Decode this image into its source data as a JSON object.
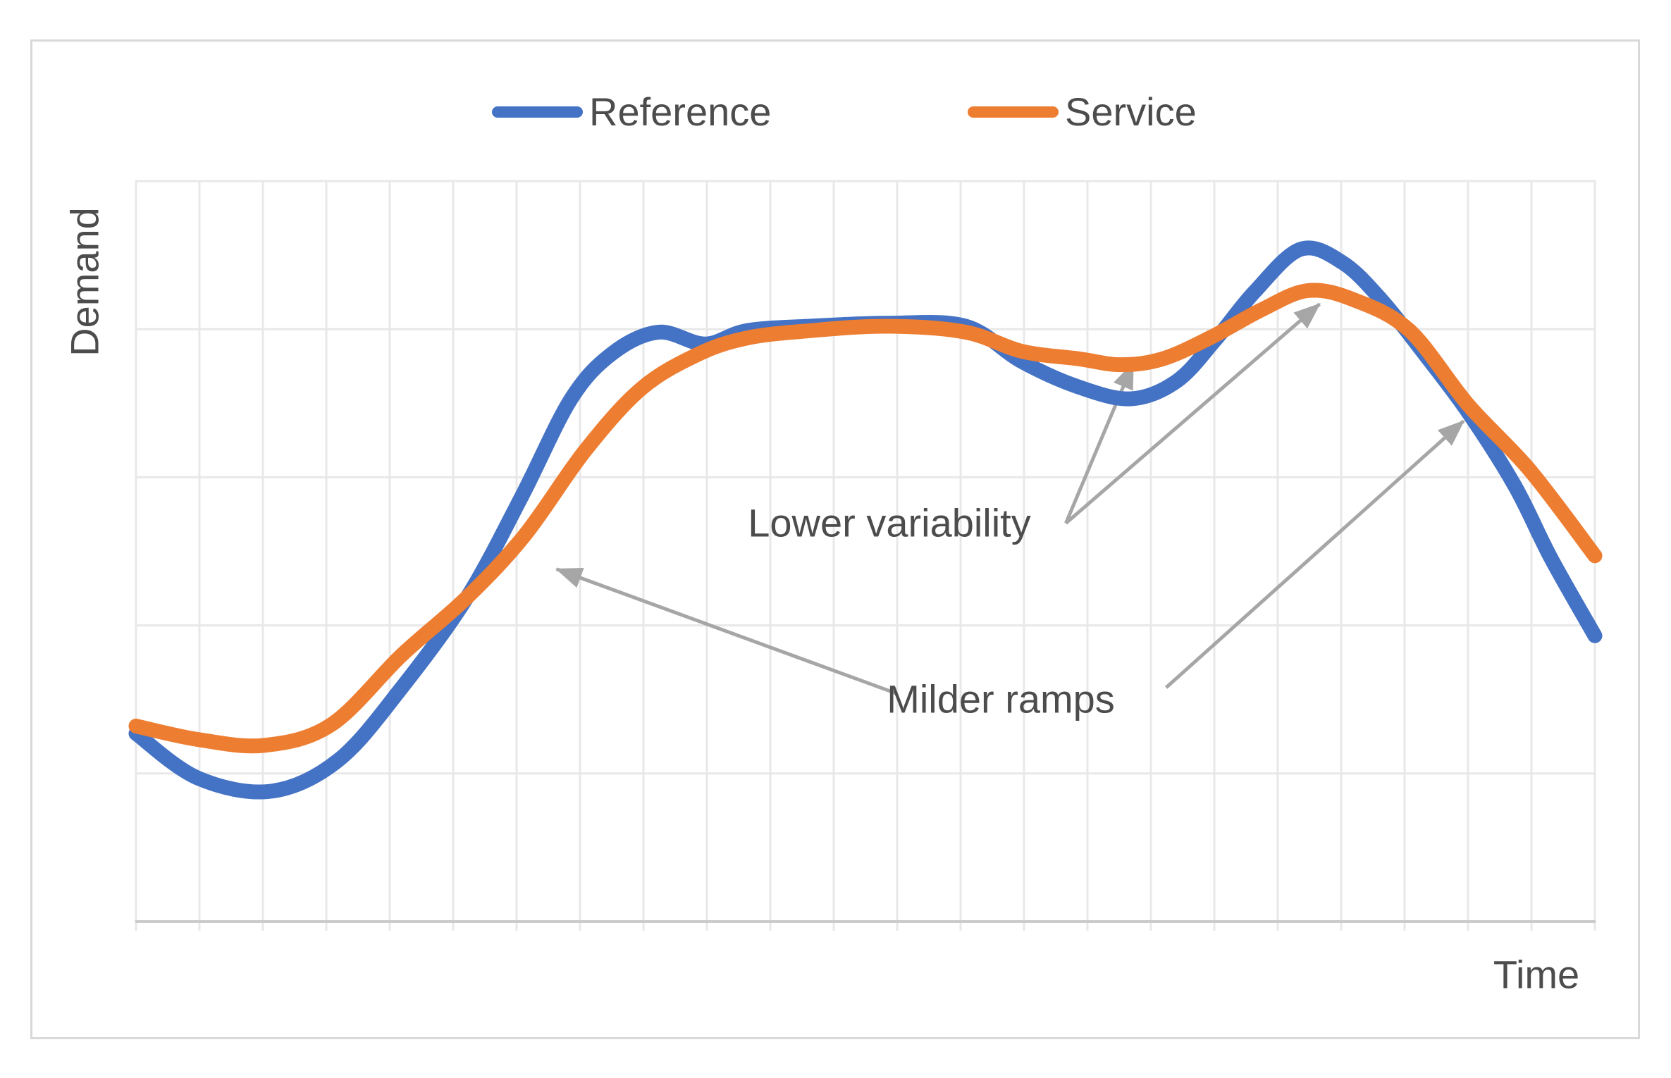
{
  "figure": {
    "legend": [
      {
        "label": "Reference",
        "color": "#4472C4",
        "swatch": "blue-line-swatch"
      },
      {
        "label": "Service",
        "color": "#ED7D31",
        "swatch": "orange-line-swatch"
      }
    ],
    "frame_color": "#d9d9d9",
    "text_color": "#4c4c4c",
    "arrow_color": "#a6a6a6",
    "gridline_color": "#e8e8e8",
    "axis_line_color": "#cbcbcb"
  },
  "chart_data": {
    "type": "line",
    "title": "",
    "xlabel": "Time",
    "ylabel": "Demand",
    "x_range": [
      0,
      23
    ],
    "y_range": [
      0,
      5
    ],
    "x_gridline_count": 24,
    "y_gridline_count": 6,
    "grid": true,
    "legend_position": "top",
    "axis_tick_labels": "none",
    "series": [
      {
        "name": "Reference",
        "color": "#4472C4",
        "points": [
          [
            0.0,
            1.27
          ],
          [
            0.97,
            0.97
          ],
          [
            2.13,
            0.88
          ],
          [
            3.19,
            1.09
          ],
          [
            4.19,
            1.58
          ],
          [
            5.22,
            2.19
          ],
          [
            6.08,
            2.87
          ],
          [
            6.86,
            3.53
          ],
          [
            7.52,
            3.84
          ],
          [
            8.24,
            3.98
          ],
          [
            8.97,
            3.9
          ],
          [
            9.63,
            3.99
          ],
          [
            10.63,
            4.02
          ],
          [
            11.86,
            4.04
          ],
          [
            13.08,
            4.02
          ],
          [
            13.97,
            3.78
          ],
          [
            14.86,
            3.61
          ],
          [
            15.69,
            3.53
          ],
          [
            16.41,
            3.65
          ],
          [
            17.02,
            3.93
          ],
          [
            17.63,
            4.25
          ],
          [
            18.36,
            4.54
          ],
          [
            19.02,
            4.45
          ],
          [
            19.63,
            4.2
          ],
          [
            20.3,
            3.84
          ],
          [
            21.0,
            3.44
          ],
          [
            21.74,
            2.94
          ],
          [
            22.3,
            2.46
          ],
          [
            23.0,
            1.93
          ]
        ]
      },
      {
        "name": "Service",
        "color": "#ED7D31",
        "points": [
          [
            0.0,
            1.32
          ],
          [
            0.97,
            1.23
          ],
          [
            2.02,
            1.19
          ],
          [
            3.08,
            1.33
          ],
          [
            4.19,
            1.8
          ],
          [
            5.22,
            2.19
          ],
          [
            6.13,
            2.61
          ],
          [
            7.08,
            3.18
          ],
          [
            7.97,
            3.6
          ],
          [
            8.86,
            3.83
          ],
          [
            9.63,
            3.94
          ],
          [
            10.63,
            3.99
          ],
          [
            11.86,
            4.02
          ],
          [
            13.08,
            3.98
          ],
          [
            13.97,
            3.85
          ],
          [
            14.86,
            3.8
          ],
          [
            15.52,
            3.76
          ],
          [
            16.19,
            3.8
          ],
          [
            16.97,
            3.95
          ],
          [
            17.74,
            4.13
          ],
          [
            18.47,
            4.26
          ],
          [
            19.19,
            4.2
          ],
          [
            20.08,
            3.99
          ],
          [
            21.0,
            3.49
          ],
          [
            21.97,
            3.05
          ],
          [
            23.0,
            2.47
          ]
        ]
      }
    ],
    "annotations": [
      {
        "text": "Lower variability",
        "arrows": [
          {
            "from": [
              14.66,
              2.69
            ],
            "to": [
              15.72,
              3.77
            ]
          },
          {
            "from": [
              14.66,
              2.69
            ],
            "to": [
              18.66,
              4.17
            ]
          }
        ]
      },
      {
        "text": "Milder ramps",
        "arrows": [
          {
            "from": [
              11.99,
              1.54
            ],
            "to": [
              6.63,
              2.38
            ]
          },
          {
            "from": [
              16.24,
              1.58
            ],
            "to": [
              20.93,
              3.38
            ]
          }
        ]
      }
    ]
  }
}
